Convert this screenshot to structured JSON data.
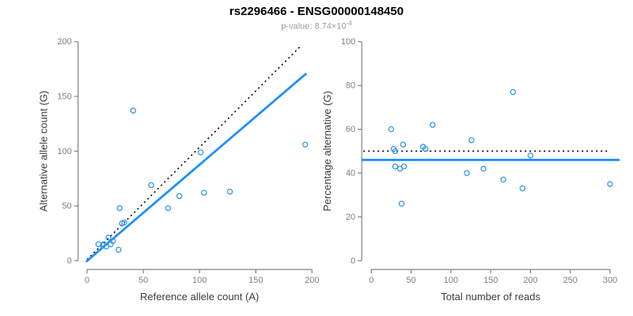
{
  "header": {
    "title": "rs2296466 - ENSG00000148450",
    "subtitle_prefix": "p-value: 8.74×10",
    "subtitle_exponent": "-4"
  },
  "colors": {
    "point": "#3498e8",
    "fit_line": "#1e90ff",
    "expected_line": "#000000",
    "axis": "#808080",
    "tick_label": "#7f7f7f",
    "axis_title": "#3c3c3c",
    "title": "#000000",
    "subtitle": "#9b9b9b",
    "background": "#ffffff"
  },
  "chart_data": [
    {
      "type": "scatter",
      "panel": "left",
      "xlabel": "Reference allele count (A)",
      "ylabel": "Alternative allele count (G)",
      "xlim": [
        0,
        200
      ],
      "ylim": [
        0,
        200
      ],
      "xticks": [
        0,
        50,
        100,
        150,
        200
      ],
      "yticks": [
        0,
        50,
        100,
        150,
        200
      ],
      "grid": false,
      "legend": null,
      "points": [
        [
          10,
          15
        ],
        [
          14,
          14
        ],
        [
          15,
          15
        ],
        [
          17,
          13
        ],
        [
          21,
          15
        ],
        [
          23,
          18
        ],
        [
          19,
          21
        ],
        [
          28,
          10
        ],
        [
          31,
          34
        ],
        [
          33,
          35
        ],
        [
          29,
          48
        ],
        [
          41,
          137
        ],
        [
          57,
          69
        ],
        [
          72,
          48
        ],
        [
          82,
          59
        ],
        [
          101,
          99
        ],
        [
          104,
          62
        ],
        [
          127,
          63
        ],
        [
          194,
          106
        ]
      ],
      "lines": [
        {
          "name": "identity-line",
          "style": "dotted",
          "color": "#000000",
          "width": 1.6,
          "from": [
            0,
            1
          ],
          "to": [
            189,
            195
          ]
        },
        {
          "name": "fit-line",
          "style": "solid",
          "color": "#1e90ff",
          "width": 2.8,
          "from": [
            -1,
            -1
          ],
          "to": [
            195,
            171
          ]
        }
      ]
    },
    {
      "type": "scatter",
      "panel": "right",
      "xlabel": "Total number of reads",
      "ylabel": "Percentage alternative (G)",
      "xlim": [
        0,
        300
      ],
      "ylim": [
        0,
        100
      ],
      "xticks": [
        0,
        50,
        100,
        150,
        200,
        250,
        300
      ],
      "yticks": [
        0,
        20,
        40,
        60,
        80,
        100
      ],
      "grid": false,
      "legend": null,
      "points": [
        [
          25,
          60
        ],
        [
          28,
          51
        ],
        [
          30,
          50
        ],
        [
          30,
          43
        ],
        [
          36,
          42
        ],
        [
          41,
          43
        ],
        [
          40,
          53
        ],
        [
          38,
          26
        ],
        [
          65,
          52
        ],
        [
          68,
          51
        ],
        [
          77,
          62
        ],
        [
          178,
          77
        ],
        [
          126,
          55
        ],
        [
          120,
          40
        ],
        [
          141,
          42
        ],
        [
          200,
          48
        ],
        [
          166,
          37
        ],
        [
          190,
          33
        ],
        [
          300,
          35
        ]
      ],
      "lines": [
        {
          "name": "expected-line",
          "style": "dotted",
          "color": "#000000",
          "width": 1.6,
          "from": [
            -10,
            50
          ],
          "to": [
            299,
            50
          ]
        },
        {
          "name": "fit-line",
          "style": "solid",
          "color": "#1e90ff",
          "width": 2.8,
          "from": [
            -12,
            46
          ],
          "to": [
            312,
            46
          ]
        }
      ]
    }
  ]
}
